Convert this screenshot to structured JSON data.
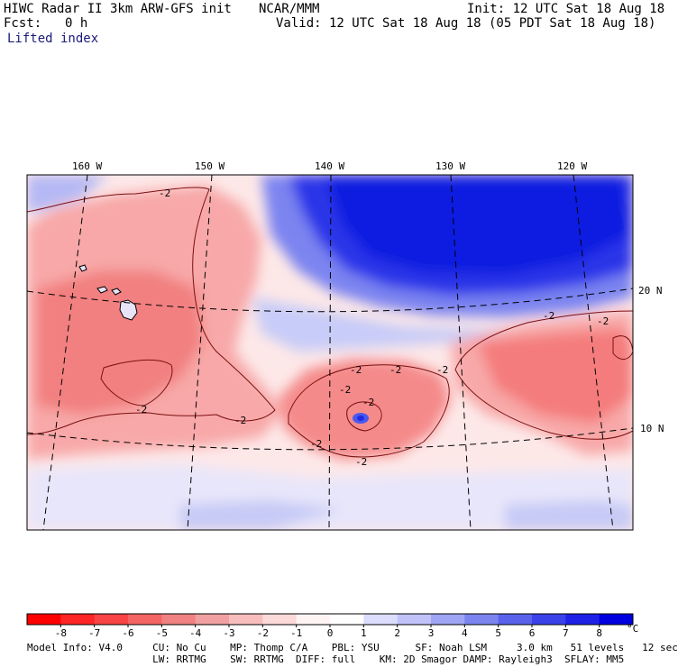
{
  "header": {
    "title_left": "HIWC Radar II 3km ARW-GFS init",
    "center_org": "NCAR/MMM",
    "init": "Init: 12 UTC Sat 18 Aug 18",
    "fcst_label": "Fcst:",
    "fcst_value": "0 h",
    "valid": "Valid: 12 UTC Sat 18 Aug 18 (05 PDT Sat 18 Aug 18)",
    "field": "Lifted index"
  },
  "map": {
    "lon_labels": [
      "160 W",
      "150 W",
      "140 W",
      "130 W",
      "120 W"
    ],
    "lat_labels": [
      "20 N",
      "10 N"
    ],
    "contour_label": "-2",
    "colors": {
      "strong_blue": "#0022dd",
      "mid_blue": "#5c6cf0",
      "light_blue": "#c8ccf8",
      "pale": "#fde8e8",
      "light_red": "#fcb4b4",
      "mid_red": "#f47878",
      "contour": "#7a1010"
    }
  },
  "colorbar": {
    "ticks": [
      "-8",
      "-7",
      "-6",
      "-5",
      "-4",
      "-3",
      "-2",
      "-1",
      "0",
      "1",
      "2",
      "3",
      "4",
      "5",
      "6",
      "7",
      "8"
    ],
    "unit": "°C",
    "colors": [
      "#ff0000",
      "#fd2525",
      "#f84444",
      "#f46464",
      "#f08282",
      "#f0a0a0",
      "#f8bebe",
      "#fcdada",
      "#fff4f4",
      "#ffffff",
      "#dcdcfc",
      "#c0c2f8",
      "#a0a4f4",
      "#7c84f0",
      "#5a62ec",
      "#3c42ea",
      "#1e22e6",
      "#0000e0"
    ]
  },
  "footer": {
    "line1": "Model Info: V4.0     CU: No Cu    MP: Thomp C/A    PBL: YSU      SF: Noah LSM     3.0 km   51 levels   12 sec",
    "line2": "                     LW: RRTMG    SW: RRTMG  DIFF: full    KM: 2D Smagor DAMP: Rayleigh3  SFLAY: MM5"
  }
}
